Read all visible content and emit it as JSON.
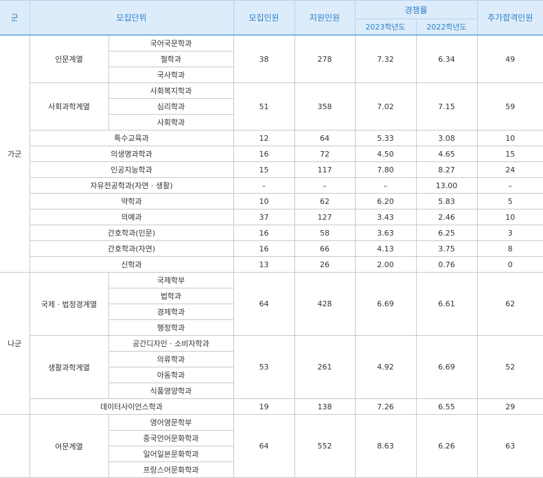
{
  "header": {
    "group": "군",
    "unit": "모집단위",
    "quota": "모집인원",
    "applicants": "지원인원",
    "competition": "경쟁률",
    "year2023": "2023학년도",
    "year2022": "2022학년도",
    "additional": "추가합격인원"
  },
  "groups": [
    {
      "name": "가군",
      "rows": [
        {
          "division": "인문계열",
          "majors": [
            "국어국문학과",
            "철학과",
            "국사학과"
          ],
          "quota": "38",
          "applicants": "278",
          "rate2023": "7.32",
          "rate2022": "6.34",
          "additional": "49"
        },
        {
          "division": "사회과학계열",
          "majors": [
            "사회복지학과",
            "심리학과",
            "사회학과"
          ],
          "quota": "51",
          "applicants": "358",
          "rate2023": "7.02",
          "rate2022": "7.15",
          "additional": "59"
        },
        {
          "unit": "특수교육과",
          "quota": "12",
          "applicants": "64",
          "rate2023": "5.33",
          "rate2022": "3.08",
          "additional": "10"
        },
        {
          "unit": "의생명과학과",
          "quota": "16",
          "applicants": "72",
          "rate2023": "4.50",
          "rate2022": "4.65",
          "additional": "15"
        },
        {
          "unit": "인공지능학과",
          "quota": "15",
          "applicants": "117",
          "rate2023": "7.80",
          "rate2022": "8.27",
          "additional": "24"
        },
        {
          "unit": "자유전공학과(자연 · 생활)",
          "quota": "–",
          "applicants": "–",
          "rate2023": "–",
          "rate2022": "13.00",
          "additional": "–"
        },
        {
          "unit": "약학과",
          "quota": "10",
          "applicants": "62",
          "rate2023": "6.20",
          "rate2022": "5.83",
          "additional": "5"
        },
        {
          "unit": "의예과",
          "quota": "37",
          "applicants": "127",
          "rate2023": "3.43",
          "rate2022": "2.46",
          "additional": "10"
        },
        {
          "unit": "간호학과(인문)",
          "quota": "16",
          "applicants": "58",
          "rate2023": "3.63",
          "rate2022": "6.25",
          "additional": "3"
        },
        {
          "unit": "간호학과(자연)",
          "quota": "16",
          "applicants": "66",
          "rate2023": "4.13",
          "rate2022": "3.75",
          "additional": "8"
        },
        {
          "unit": "신학과",
          "quota": "13",
          "applicants": "26",
          "rate2023": "2.00",
          "rate2022": "0.76",
          "additional": "0"
        }
      ]
    },
    {
      "name": "나군",
      "rows": [
        {
          "division": "국제 · 법정경계열",
          "majors": [
            "국제학부",
            "법학과",
            "경제학과",
            "행정학과"
          ],
          "quota": "64",
          "applicants": "428",
          "rate2023": "6.69",
          "rate2022": "6.61",
          "additional": "62"
        },
        {
          "division": "생활과학계열",
          "majors": [
            "공간디자인 · 소비자학과",
            "의류학과",
            "아동학과",
            "식품영양학과"
          ],
          "quota": "53",
          "applicants": "261",
          "rate2023": "4.92",
          "rate2022": "6.69",
          "additional": "52"
        },
        {
          "unit": "데이터사이언스학과",
          "quota": "19",
          "applicants": "138",
          "rate2023": "7.26",
          "rate2022": "6.55",
          "additional": "29"
        }
      ]
    },
    {
      "name": "",
      "rows": [
        {
          "division": "어문계열",
          "majors": [
            "영어영문학부",
            "중국언어문화학과",
            "일어일본문화학과",
            "프랑스어문화학과"
          ],
          "quota": "64",
          "applicants": "552",
          "rate2023": "8.63",
          "rate2022": "6.26",
          "additional": "63"
        }
      ]
    }
  ]
}
